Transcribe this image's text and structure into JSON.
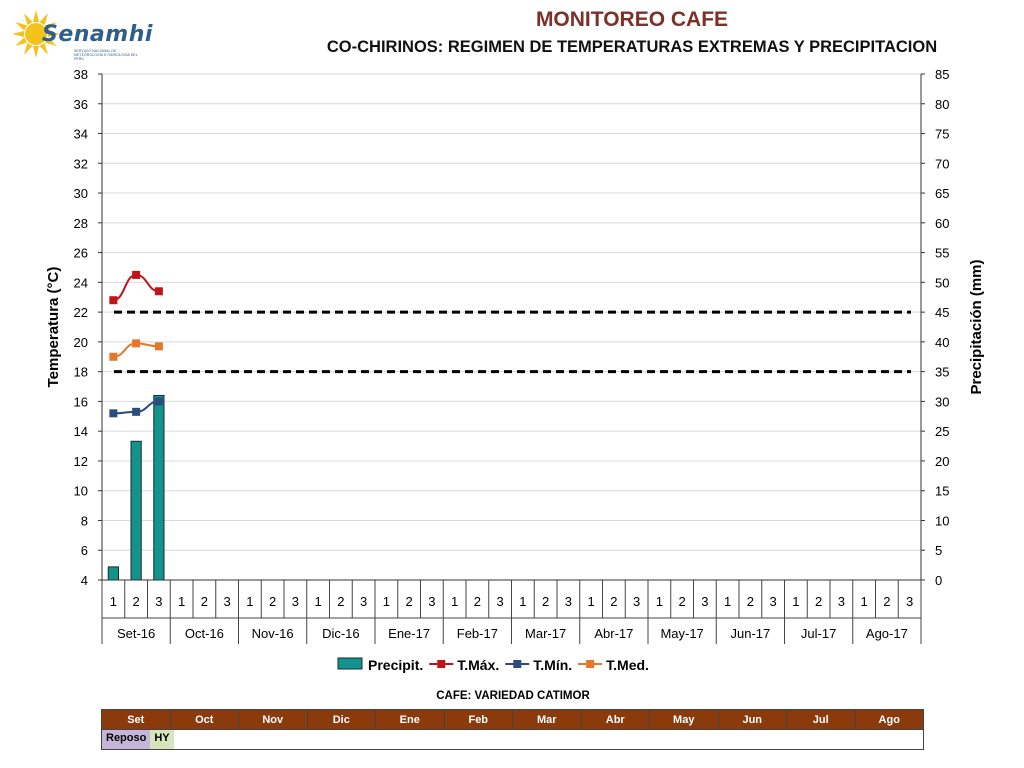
{
  "header": {
    "logo_name": "Senamhi",
    "logo_subtitle": "SERVICIO NACIONAL DE METEOROLOGÍA E HIDROLOGÍA DEL PERÚ",
    "title": "MONITOREO CAFE",
    "subtitle": "CO-CHIRINOS: REGIMEN DE TEMPERATURAS EXTREMAS Y PRECIPITACION"
  },
  "chart_data": {
    "type": "bar",
    "y_left": {
      "label": "Temperatura (°C)",
      "range": [
        4,
        38
      ],
      "ticks": [
        4,
        6,
        8,
        10,
        12,
        14,
        16,
        18,
        20,
        22,
        24,
        26,
        28,
        30,
        32,
        34,
        36,
        38
      ]
    },
    "y_right": {
      "label": "Precipitación (mm)",
      "range": [
        0,
        85
      ],
      "ticks": [
        0,
        5,
        10,
        15,
        20,
        25,
        30,
        35,
        40,
        45,
        50,
        55,
        60,
        65,
        70,
        75,
        80,
        85
      ]
    },
    "months": [
      "Set-16",
      "Oct-16",
      "Nov-16",
      "Dic-16",
      "Ene-17",
      "Feb-17",
      "Mar-17",
      "Abr-17",
      "May-17",
      "Jun-17",
      "Jul-17",
      "Ago-17"
    ],
    "dekads": [
      "1",
      "2",
      "3"
    ],
    "series": [
      {
        "name": "Precipit.",
        "type": "bar",
        "axis": "right",
        "color": "#12938c",
        "values": [
          2.2,
          23.3,
          31.0
        ]
      },
      {
        "name": "T.Máx.",
        "type": "line",
        "axis": "left",
        "color": "#c0141b",
        "values": [
          22.8,
          24.5,
          23.4
        ]
      },
      {
        "name": "T.Mín.",
        "type": "line",
        "axis": "left",
        "color": "#2c4c80",
        "values": [
          15.2,
          15.3,
          16.0
        ]
      },
      {
        "name": "T.Med.",
        "type": "line",
        "axis": "left",
        "color": "#e4772a",
        "values": [
          19.0,
          19.9,
          19.7
        ]
      }
    ],
    "reference_lines": [
      22,
      18
    ],
    "grid": true,
    "legend_position": "bottom"
  },
  "stage_table": {
    "title": "CAFE: VARIEDAD CATIMOR",
    "months": [
      "Set",
      "Oct",
      "Nov",
      "Dic",
      "Ene",
      "Feb",
      "Mar",
      "Abr",
      "May",
      "Jun",
      "Jul",
      "Ago"
    ],
    "phases": [
      {
        "label": "Reposo",
        "color": "#c5b5d9"
      },
      {
        "label": "HY",
        "color": "#d8e4bc"
      }
    ]
  }
}
